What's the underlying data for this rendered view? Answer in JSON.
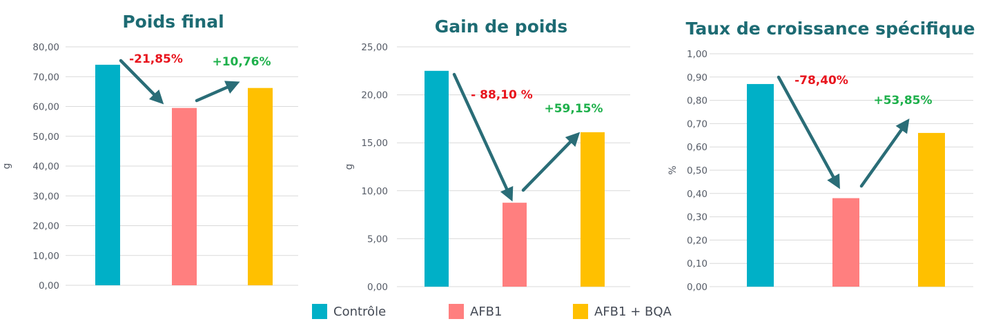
{
  "colors": {
    "title": "#1d6b73",
    "tick": "#555b66",
    "grid": "#d9d9d9",
    "arrow": "#2a6d77",
    "decrease": "#e8141d",
    "increase": "#1eb04b"
  },
  "legend": [
    {
      "label": "Contrôle",
      "color": "#00b0c7"
    },
    {
      "label": "AFB1",
      "color": "#ff7f7f"
    },
    {
      "label": "AFB1 + BQA",
      "color": "#ffc000"
    }
  ],
  "chart_data": [
    {
      "type": "bar",
      "title": "Poids final",
      "ylabel": "g",
      "ylim": [
        0,
        80
      ],
      "ytick_step": 10,
      "yticks": [
        "0,00",
        "10,00",
        "20,00",
        "30,00",
        "40,00",
        "50,00",
        "60,00",
        "70,00",
        "80,00"
      ],
      "categories": [
        "Contrôle",
        "AFB1",
        "AFB1 + BQA"
      ],
      "values": [
        74.0,
        59.5,
        66.2
      ],
      "colors": [
        "#00b0c7",
        "#ff7f7f",
        "#ffc000"
      ],
      "grid": true,
      "annotations": [
        {
          "text": "-21,85%",
          "kind": "decrease"
        },
        {
          "text": "+10,76%",
          "kind": "increase"
        }
      ]
    },
    {
      "type": "bar",
      "title": "Gain de poids",
      "ylabel": "g",
      "ylim": [
        0,
        25
      ],
      "ytick_step": 5,
      "yticks": [
        "0,00",
        "5,00",
        "10,00",
        "15,00",
        "20,00",
        "25,00"
      ],
      "categories": [
        "Contrôle",
        "AFB1",
        "AFB1 + BQA"
      ],
      "values": [
        22.5,
        8.75,
        16.1
      ],
      "colors": [
        "#00b0c7",
        "#ff7f7f",
        "#ffc000"
      ],
      "grid": true,
      "annotations": [
        {
          "text": "- 88,10 %",
          "kind": "decrease"
        },
        {
          "text": "+59,15%",
          "kind": "increase"
        }
      ]
    },
    {
      "type": "bar",
      "title": "Taux de croissance spécifique",
      "ylabel": "%",
      "ylim": [
        0,
        1
      ],
      "ytick_step": 0.1,
      "yticks": [
        "0,00",
        "0,10",
        "0,20",
        "0,30",
        "0,40",
        "0,50",
        "0,60",
        "0,70",
        "0,80",
        "0,90",
        "1,00"
      ],
      "categories": [
        "Contrôle",
        "AFB1",
        "AFB1 + BQA"
      ],
      "values": [
        0.87,
        0.38,
        0.66
      ],
      "colors": [
        "#00b0c7",
        "#ff7f7f",
        "#ffc000"
      ],
      "grid": true,
      "annotations": [
        {
          "text": "-78,40%",
          "kind": "decrease"
        },
        {
          "text": "+53,85%",
          "kind": "increase"
        }
      ]
    }
  ]
}
